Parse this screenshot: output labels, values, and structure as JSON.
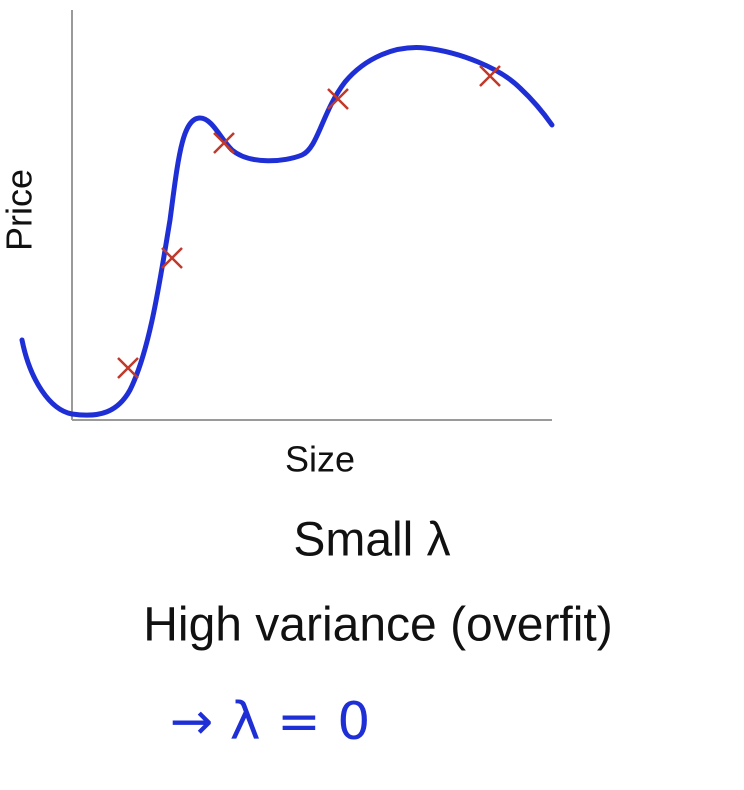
{
  "plot": {
    "y_label": "Price",
    "x_label": "Size"
  },
  "caption": {
    "line1": "Small λ",
    "line2": "High variance (overfit)"
  },
  "handwriting": "→ λ = 0"
}
